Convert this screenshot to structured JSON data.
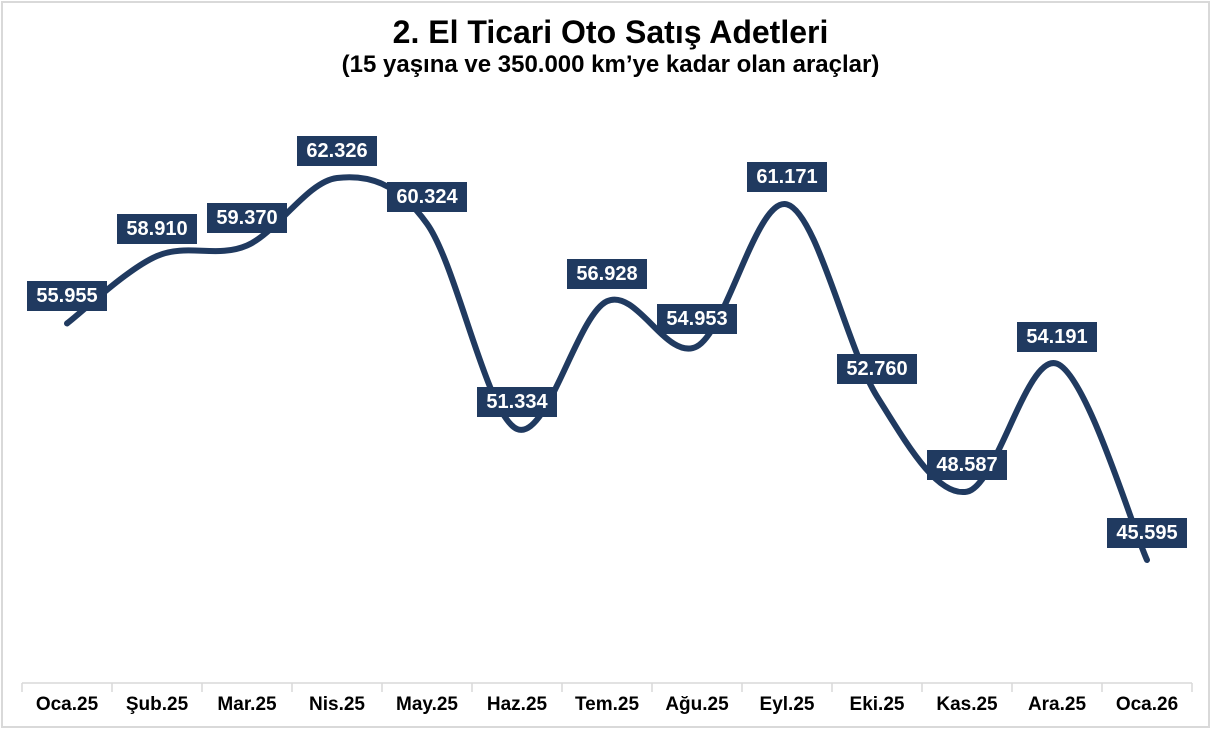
{
  "chart_data": {
    "type": "line",
    "smooth": true,
    "title": "2. El Ticari Oto Satış Adetleri",
    "subtitle": "(15 yaşına ve 350.000 km’ye kadar olan araçlar)",
    "categories": [
      "Oca.25",
      "Şub.25",
      "Mar.25",
      "Nis.25",
      "May.25",
      "Haz.25",
      "Tem.25",
      "Ağu.25",
      "Eyl.25",
      "Eki.25",
      "Kas.25",
      "Ara.25",
      "Oca.26"
    ],
    "values": [
      55955,
      58910,
      59370,
      62326,
      60324,
      51334,
      56928,
      54953,
      61171,
      52760,
      48587,
      54191,
      45595
    ],
    "data_labels": [
      "55.955",
      "58.910",
      "59.370",
      "62.326",
      "60.324",
      "51.334",
      "56.928",
      "54.953",
      "61.171",
      "52.760",
      "48.587",
      "54.191",
      "45.595"
    ],
    "xlabel": "",
    "ylabel": "",
    "ylim": [
      45595,
      62326
    ],
    "grid": false,
    "legend": "none",
    "y_axis_visible": false,
    "colors": {
      "line": "#203a60",
      "label_background": "#203a60",
      "label_text": "#ffffff",
      "axis": "#d9d9d9",
      "title_text": "#000000",
      "chart_border": "#d9d9d9",
      "background": "#ffffff"
    }
  }
}
